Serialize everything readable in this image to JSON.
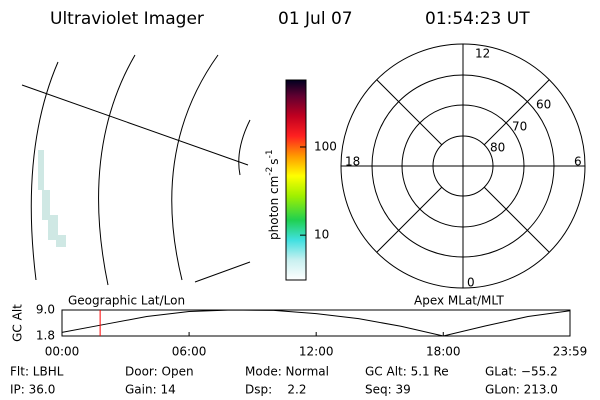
{
  "header": {
    "title": "Ultraviolet Imager",
    "date": "01 Jul 07",
    "time": "01:54:23 UT"
  },
  "colorbar": {
    "label": "photon cm",
    "exp1": "-2",
    "unit2": "s",
    "exp2": "-1",
    "log": true,
    "lim": [
      3.1,
      575
    ],
    "ticks": [
      10,
      100
    ]
  },
  "polar": {
    "labels": [
      "12",
      "6",
      "0",
      "18",
      "60",
      "70",
      "80"
    ]
  },
  "chart_data": {
    "type": "line",
    "ylabel": "GC Alt",
    "left_label": "Geographic Lat/Lon",
    "right_label": "Apex MLat/MLT",
    "xlim": [
      0,
      23.983
    ],
    "xticks": [
      {
        "value": 0,
        "label": "00:00"
      },
      {
        "value": 6,
        "label": "06:00"
      },
      {
        "value": 12,
        "label": "12:00"
      },
      {
        "value": 18,
        "label": "18:00"
      },
      {
        "value": 23.983,
        "label": "23:59"
      }
    ],
    "ylim": [
      1.8,
      9.0
    ],
    "yticks": [
      {
        "value": 9.0,
        "label": "9.0"
      },
      1.8
    ],
    "x": [
      0,
      2,
      4,
      6,
      8,
      10,
      12,
      14,
      16,
      18,
      20,
      22,
      23.983
    ],
    "series": [
      {
        "color": "#000000",
        "values": [
          2.8,
          5.0,
          7.2,
          8.6,
          9.0,
          8.9,
          8.0,
          6.6,
          4.5,
          1.8,
          4.6,
          7.2,
          8.8
        ]
      }
    ],
    "marker": 1.8,
    "marker_color": "#ff0000"
  },
  "footer": [
    [
      "Flt: LBHL",
      "Door: Open",
      "Mode: Normal",
      "GC Alt: 5.1 Re",
      "GLat: −55.2"
    ],
    [
      "IP: 36.0",
      "Gain: 14",
      "Dsp:    2.2",
      "Seq: 39",
      "GLon: 213.0"
    ]
  ]
}
